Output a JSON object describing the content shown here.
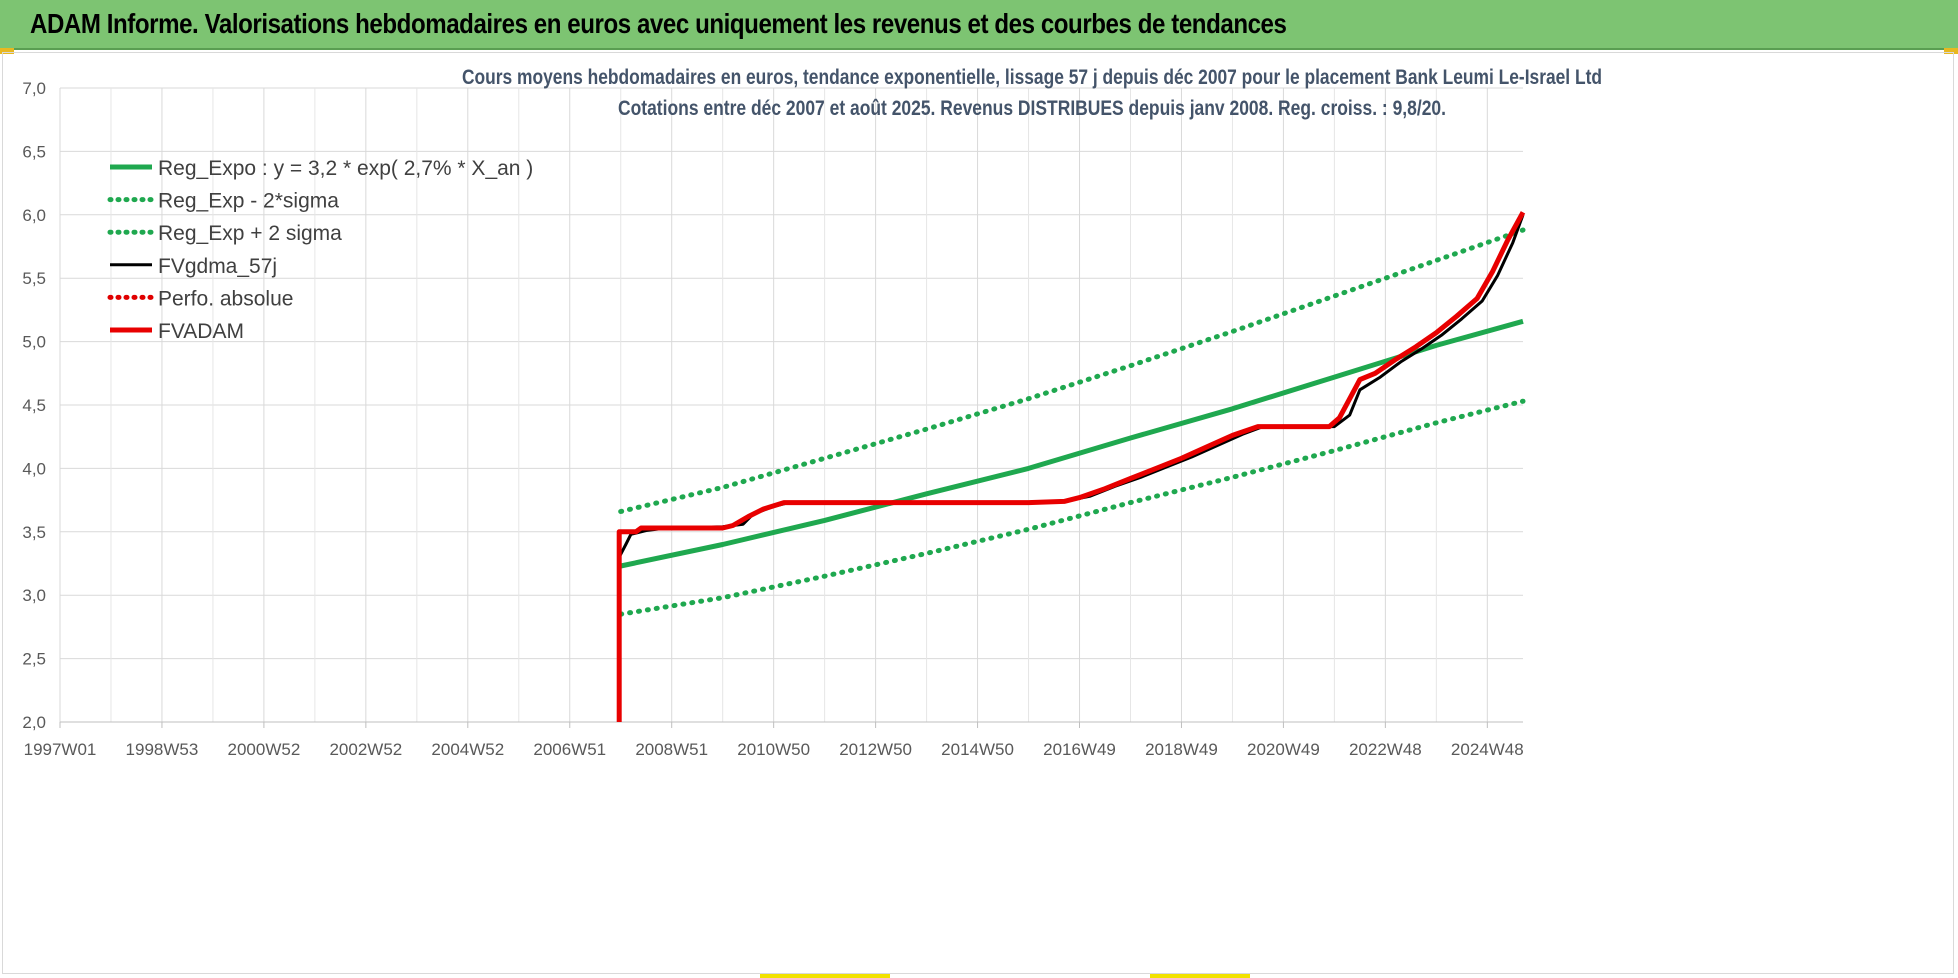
{
  "header": {
    "title": "ADAM Informe. Valorisations hebdomadaires en euros avec uniquement les revenus et des courbes de tendances",
    "bg_color": "#7dc472"
  },
  "chart_data": {
    "type": "line",
    "title_line1": "Cours moyens hebdomadaires en euros, tendance exponentielle, lissage 57 j depuis déc 2007 pour le placement Bank Leumi Le-Israel Ltd",
    "title_line2": "Cotations entre déc 2007 et août 2025. Revenus DISTRIBUES depuis janv 2008. Reg. croiss. : 9,8/20.",
    "ylim": [
      2.0,
      7.0
    ],
    "yticks": [
      "2,0",
      "2,5",
      "3,0",
      "3,5",
      "4,0",
      "4,5",
      "5,0",
      "5,5",
      "6,0",
      "6,5",
      "7,0"
    ],
    "xlim": [
      1997.0,
      2025.7
    ],
    "xticks": [
      {
        "label": "1997W01",
        "year": 1997.0
      },
      {
        "label": "1998W53",
        "year": 1999.0
      },
      {
        "label": "2000W52",
        "year": 2001.0
      },
      {
        "label": "2002W52",
        "year": 2003.0
      },
      {
        "label": "2004W52",
        "year": 2005.0
      },
      {
        "label": "2006W51",
        "year": 2007.0
      },
      {
        "label": "2008W51",
        "year": 2009.0
      },
      {
        "label": "2010W50",
        "year": 2011.0
      },
      {
        "label": "2012W50",
        "year": 2013.0
      },
      {
        "label": "2014W50",
        "year": 2015.0
      },
      {
        "label": "2016W49",
        "year": 2017.0
      },
      {
        "label": "2018W49",
        "year": 2019.0
      },
      {
        "label": "2020W49",
        "year": 2021.0
      },
      {
        "label": "2022W48",
        "year": 2023.0
      },
      {
        "label": "2024W48",
        "year": 2025.0
      }
    ],
    "grid": true,
    "legend_position": "top-left",
    "series": [
      {
        "name": "Reg_Expo : y = 3,2 * exp( 2,7% *  X_an )",
        "color": "#1fa84f",
        "style": "solid",
        "points": [
          [
            2008.0,
            3.23
          ],
          [
            2010.0,
            3.4
          ],
          [
            2012.0,
            3.59
          ],
          [
            2014.0,
            3.8
          ],
          [
            2016.0,
            4.0
          ],
          [
            2018.0,
            4.24
          ],
          [
            2020.0,
            4.47
          ],
          [
            2022.0,
            4.72
          ],
          [
            2024.0,
            4.97
          ],
          [
            2025.7,
            5.16
          ]
        ]
      },
      {
        "name": "Reg_Exp - 2*sigma",
        "color": "#1fa84f",
        "style": "dotted",
        "points": [
          [
            2008.0,
            2.85
          ],
          [
            2010.0,
            2.98
          ],
          [
            2012.0,
            3.15
          ],
          [
            2014.0,
            3.33
          ],
          [
            2016.0,
            3.52
          ],
          [
            2018.0,
            3.73
          ],
          [
            2020.0,
            3.93
          ],
          [
            2022.0,
            4.14
          ],
          [
            2024.0,
            4.36
          ],
          [
            2025.7,
            4.53
          ]
        ]
      },
      {
        "name": "Reg_Exp + 2 sigma",
        "color": "#1fa84f",
        "style": "dotted",
        "points": [
          [
            2008.0,
            3.66
          ],
          [
            2010.0,
            3.85
          ],
          [
            2012.0,
            4.08
          ],
          [
            2014.0,
            4.31
          ],
          [
            2016.0,
            4.55
          ],
          [
            2018.0,
            4.81
          ],
          [
            2020.0,
            5.08
          ],
          [
            2022.0,
            5.36
          ],
          [
            2024.0,
            5.64
          ],
          [
            2025.7,
            5.88
          ]
        ]
      },
      {
        "name": "FVgdma_57j",
        "color": "#000000",
        "style": "solid",
        "points": [
          [
            2007.97,
            3.3
          ],
          [
            2008.1,
            3.4
          ],
          [
            2008.2,
            3.48
          ],
          [
            2008.5,
            3.51
          ],
          [
            2008.9,
            3.53
          ],
          [
            2010.0,
            3.54
          ],
          [
            2010.4,
            3.56
          ],
          [
            2010.6,
            3.64
          ],
          [
            2011.0,
            3.7
          ],
          [
            2011.3,
            3.73
          ],
          [
            2016.0,
            3.73
          ],
          [
            2016.7,
            3.74
          ],
          [
            2017.2,
            3.78
          ],
          [
            2017.7,
            3.86
          ],
          [
            2018.2,
            3.93
          ],
          [
            2018.7,
            4.01
          ],
          [
            2019.2,
            4.09
          ],
          [
            2019.7,
            4.18
          ],
          [
            2020.2,
            4.27
          ],
          [
            2020.6,
            4.33
          ],
          [
            2022.0,
            4.33
          ],
          [
            2022.3,
            4.42
          ],
          [
            2022.5,
            4.62
          ],
          [
            2022.9,
            4.72
          ],
          [
            2023.3,
            4.84
          ],
          [
            2023.7,
            4.94
          ],
          [
            2024.1,
            5.05
          ],
          [
            2024.5,
            5.18
          ],
          [
            2024.9,
            5.32
          ],
          [
            2025.2,
            5.52
          ],
          [
            2025.5,
            5.78
          ],
          [
            2025.7,
            6.0
          ]
        ]
      },
      {
        "name": "Perfo. absolue",
        "color": "#e00000",
        "style": "dotted",
        "points": []
      },
      {
        "name": "FVADAM",
        "color": "#e80000",
        "style": "solid",
        "points": [
          [
            2007.97,
            2.0
          ],
          [
            2007.97,
            3.5
          ],
          [
            2008.3,
            3.5
          ],
          [
            2008.4,
            3.53
          ],
          [
            2010.0,
            3.53
          ],
          [
            2010.2,
            3.55
          ],
          [
            2010.5,
            3.62
          ],
          [
            2010.8,
            3.68
          ],
          [
            2011.2,
            3.73
          ],
          [
            2016.0,
            3.73
          ],
          [
            2016.7,
            3.74
          ],
          [
            2017.0,
            3.77
          ],
          [
            2017.5,
            3.84
          ],
          [
            2018.0,
            3.92
          ],
          [
            2018.5,
            4.0
          ],
          [
            2019.0,
            4.08
          ],
          [
            2019.5,
            4.17
          ],
          [
            2020.0,
            4.26
          ],
          [
            2020.5,
            4.33
          ],
          [
            2021.9,
            4.33
          ],
          [
            2022.1,
            4.4
          ],
          [
            2022.3,
            4.55
          ],
          [
            2022.5,
            4.7
          ],
          [
            2022.8,
            4.75
          ],
          [
            2023.2,
            4.86
          ],
          [
            2023.6,
            4.96
          ],
          [
            2024.0,
            5.07
          ],
          [
            2024.4,
            5.2
          ],
          [
            2024.8,
            5.34
          ],
          [
            2025.1,
            5.55
          ],
          [
            2025.4,
            5.8
          ],
          [
            2025.7,
            6.02
          ]
        ]
      }
    ]
  }
}
